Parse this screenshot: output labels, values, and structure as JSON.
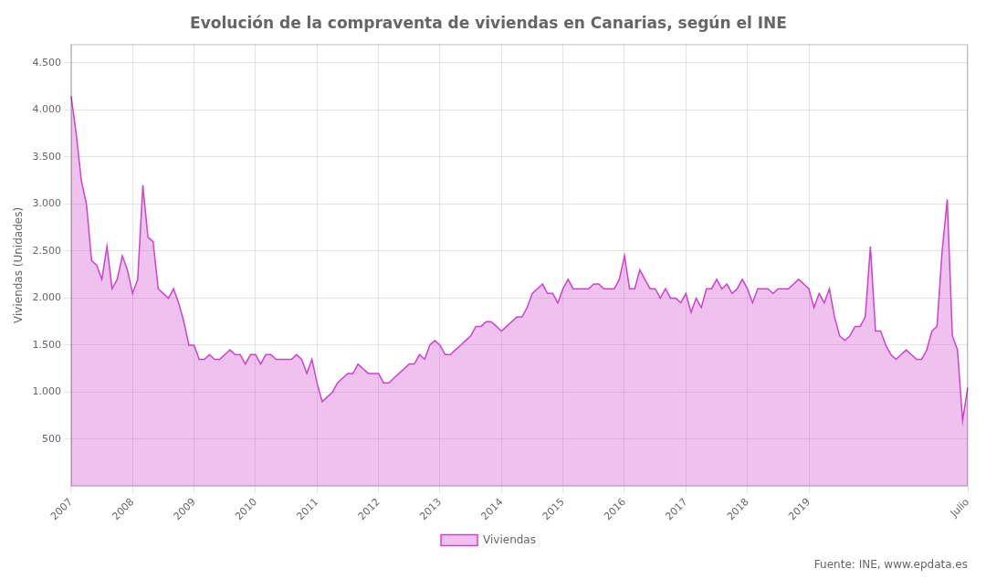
{
  "chart_data": {
    "type": "area",
    "title": "Evolución de la compraventa de viviendas en Canarias, según el INE",
    "ylabel": "Viviendas (Unidades)",
    "annotations": [
      "Fuente: INE, www.epdata.es"
    ],
    "categories": [
      "2007",
      null,
      null,
      null,
      null,
      null,
      null,
      null,
      null,
      null,
      null,
      null,
      "2008",
      null,
      null,
      null,
      null,
      null,
      null,
      null,
      null,
      null,
      null,
      null,
      "2009",
      null,
      null,
      null,
      null,
      null,
      null,
      null,
      null,
      null,
      null,
      null,
      "2010",
      null,
      null,
      null,
      null,
      null,
      null,
      null,
      null,
      null,
      null,
      null,
      "2011",
      null,
      null,
      null,
      null,
      null,
      null,
      null,
      null,
      null,
      null,
      null,
      "2012",
      null,
      null,
      null,
      null,
      null,
      null,
      null,
      null,
      null,
      null,
      null,
      "2013",
      null,
      null,
      null,
      null,
      null,
      null,
      null,
      null,
      null,
      null,
      null,
      "2014",
      null,
      null,
      null,
      null,
      null,
      null,
      null,
      null,
      null,
      null,
      null,
      "2015",
      null,
      null,
      null,
      null,
      null,
      null,
      null,
      null,
      null,
      null,
      null,
      "2016",
      null,
      null,
      null,
      null,
      null,
      null,
      null,
      null,
      null,
      null,
      null,
      "2017",
      null,
      null,
      null,
      null,
      null,
      null,
      null,
      null,
      null,
      null,
      null,
      "2018",
      null,
      null,
      null,
      null,
      null,
      null,
      null,
      null,
      null,
      null,
      null,
      "2019",
      null,
      null,
      null,
      null,
      null,
      null,
      null,
      null,
      null,
      null,
      null,
      null,
      null,
      null,
      null,
      null,
      null,
      null,
      null,
      null,
      null,
      null,
      null,
      null,
      null,
      null,
      null,
      null,
      null,
      null,
      "Julio"
    ],
    "series": [
      {
        "name": "Viviendas",
        "color": "#cc44cc",
        "values": [
          4150,
          3750,
          3250,
          3000,
          2400,
          2350,
          2200,
          2550,
          2100,
          2200,
          2450,
          2300,
          2050,
          2200,
          3200,
          2650,
          2600,
          2100,
          2050,
          2000,
          2100,
          1950,
          1750,
          1500,
          1500,
          1350,
          1350,
          1400,
          1350,
          1350,
          1400,
          1450,
          1400,
          1400,
          1300,
          1400,
          1400,
          1300,
          1400,
          1400,
          1350,
          1350,
          1350,
          1350,
          1400,
          1350,
          1200,
          1350,
          1100,
          900,
          950,
          1000,
          1100,
          1150,
          1200,
          1200,
          1300,
          1250,
          1200,
          1200,
          1200,
          1100,
          1100,
          1150,
          1200,
          1250,
          1300,
          1300,
          1400,
          1350,
          1500,
          1550,
          1500,
          1400,
          1400,
          1450,
          1500,
          1550,
          1600,
          1700,
          1700,
          1750,
          1750,
          1700,
          1650,
          1700,
          1750,
          1800,
          1800,
          1900,
          2050,
          2100,
          2150,
          2050,
          2050,
          1950,
          2100,
          2200,
          2100,
          2100,
          2100,
          2100,
          2150,
          2150,
          2100,
          2100,
          2100,
          2200,
          2450,
          2100,
          2100,
          2300,
          2200,
          2100,
          2100,
          2000,
          2100,
          2000,
          2000,
          1950,
          2050,
          1850,
          2000,
          1900,
          2100,
          2100,
          2200,
          2100,
          2150,
          2050,
          2100,
          2200,
          2100,
          1950,
          2100,
          2100,
          2100,
          2050,
          2100,
          2100,
          2100,
          2150,
          2200,
          2150,
          2100,
          1900,
          2050,
          1950,
          2100,
          1800,
          1600,
          1550,
          1600,
          1700,
          1700,
          1800,
          2550,
          1650,
          1650,
          1500,
          1400,
          1350,
          1400,
          1450,
          1400,
          1350,
          1350,
          1450,
          1650,
          1700,
          2500,
          3050,
          1600,
          1450,
          700,
          1050
        ]
      }
    ],
    "ylim": [
      0,
      4700
    ],
    "yticks": [
      500,
      {
        "value": 1000,
        "label": "1.000"
      },
      {
        "value": 1500,
        "label": "1.500"
      },
      {
        "value": 2000,
        "label": "2.000"
      },
      {
        "value": 2500,
        "label": "2.500"
      },
      {
        "value": 3000,
        "label": "3.000"
      },
      {
        "value": 3500,
        "label": "3.500"
      },
      {
        "value": 4000,
        "label": "4.000"
      },
      {
        "value": 4500,
        "label": "4.500"
      }
    ],
    "grid": true,
    "legend": "bottom"
  }
}
